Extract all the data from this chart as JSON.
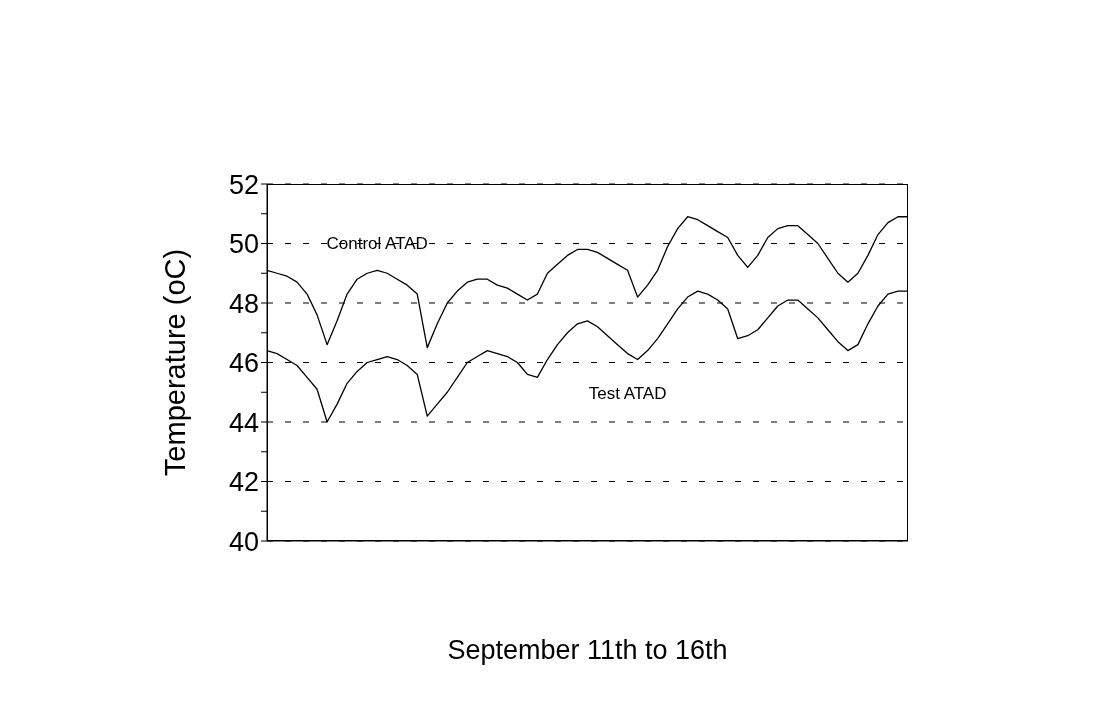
{
  "chart_data": {
    "type": "line",
    "xlabel": "September 11th to 16th",
    "ylabel": "Temperature (oC)",
    "categories": [
      null,
      null,
      null,
      null,
      null,
      null,
      null,
      null,
      null,
      null,
      null,
      null,
      null,
      null,
      null,
      null,
      null,
      null,
      null,
      null,
      null,
      null,
      null,
      null,
      null,
      null,
      null,
      null,
      null,
      null,
      null,
      null,
      null,
      null,
      null,
      null,
      null,
      null,
      null,
      null,
      null,
      null,
      null,
      null,
      null,
      null,
      null,
      null,
      null,
      null,
      null,
      null,
      null,
      null,
      null,
      null,
      null,
      null,
      null,
      null,
      null,
      null,
      null,
      null,
      null
    ],
    "series": [
      {
        "name": "Control ATAD",
        "color": "#000000",
        "values": [
          49.1,
          49.0,
          48.9,
          48.7,
          48.3,
          47.6,
          46.6,
          47.4,
          48.3,
          48.8,
          49.0,
          49.1,
          49.0,
          48.8,
          48.6,
          48.3,
          46.5,
          47.3,
          48.0,
          48.4,
          48.7,
          48.8,
          48.8,
          48.6,
          48.5,
          48.3,
          48.1,
          48.3,
          49.0,
          49.3,
          49.6,
          49.8,
          49.8,
          49.7,
          49.5,
          49.3,
          49.1,
          48.2,
          48.6,
          49.1,
          49.9,
          50.5,
          50.9,
          50.8,
          50.6,
          50.4,
          50.2,
          49.6,
          49.2,
          49.6,
          50.2,
          50.5,
          50.6,
          50.6,
          50.3,
          50.0,
          49.5,
          49.0,
          48.7,
          49.0,
          49.6,
          50.3,
          50.7,
          50.9,
          50.9
        ]
      },
      {
        "name": "Test ATAD",
        "color": "#000000",
        "values": [
          46.4,
          46.3,
          46.1,
          45.9,
          45.5,
          45.1,
          44.0,
          44.6,
          45.3,
          45.7,
          46.0,
          46.1,
          46.2,
          46.1,
          45.9,
          45.6,
          44.2,
          44.6,
          45.0,
          45.5,
          46.0,
          46.2,
          46.4,
          46.3,
          46.2,
          46.0,
          45.6,
          45.5,
          46.1,
          46.6,
          47.0,
          47.3,
          47.4,
          47.2,
          46.9,
          46.6,
          46.3,
          46.1,
          46.4,
          46.8,
          47.3,
          47.8,
          48.2,
          48.4,
          48.3,
          48.1,
          47.8,
          46.8,
          46.9,
          47.1,
          47.5,
          47.9,
          48.1,
          48.1,
          47.8,
          47.5,
          47.1,
          46.7,
          46.4,
          46.6,
          47.3,
          47.9,
          48.3,
          48.4,
          48.4
        ]
      }
    ],
    "ylim": [
      40,
      52
    ],
    "yticks": [
      40,
      {
        "value": 41,
        "label": null
      },
      42,
      {
        "value": 43,
        "label": null
      },
      44,
      {
        "value": 45,
        "label": null
      },
      46,
      {
        "value": 47,
        "label": null
      },
      48,
      {
        "value": 49,
        "label": null
      },
      50,
      {
        "value": 51,
        "label": null
      },
      52
    ],
    "grid": "y",
    "legend": false,
    "marker": "none",
    "line_style": "solid"
  }
}
